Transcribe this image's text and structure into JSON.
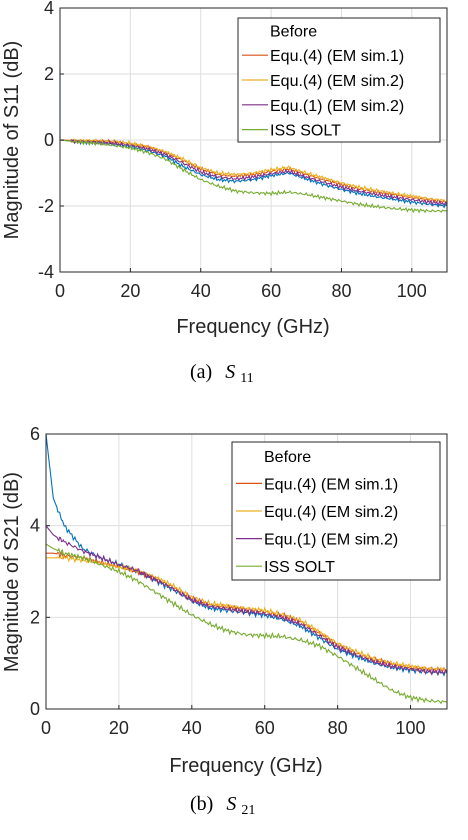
{
  "colors": {
    "axis": "#262626",
    "grid": "#dedede",
    "equ4_em1": "#d95319",
    "equ4_em2": "#edb120",
    "equ1_em2": "#7e2f8e",
    "iss_solt": "#77ac30",
    "before": "#0072bd"
  },
  "chart_data": [
    {
      "type": "line",
      "caption_prefix": "(a)",
      "caption_symbol": "S",
      "caption_sub": "11",
      "xlabel": "Frequency (GHz)",
      "ylabel": "Magnitude of S11 (dB)",
      "xlim": [
        0,
        110
      ],
      "ylim": [
        -4,
        4
      ],
      "xticks": [
        0,
        20,
        40,
        60,
        80,
        100
      ],
      "yticks": [
        -4,
        -2,
        0,
        2,
        4
      ],
      "grid": true,
      "legend_position": "top-right",
      "x": [
        0,
        5,
        10,
        15,
        20,
        25,
        30,
        35,
        40,
        45,
        50,
        55,
        60,
        65,
        70,
        75,
        80,
        85,
        90,
        95,
        100,
        105,
        110
      ],
      "series": [
        {
          "name": "Before",
          "key": "before",
          "spike": 2.2,
          "values": [
            0,
            -0.05,
            -0.08,
            -0.13,
            -0.2,
            -0.32,
            -0.5,
            -0.8,
            -1.05,
            -1.2,
            -1.25,
            -1.2,
            -1.08,
            -1.0,
            -1.18,
            -1.35,
            -1.5,
            -1.62,
            -1.72,
            -1.8,
            -1.88,
            -1.95,
            -2.0
          ]
        },
        {
          "name": "Equ.(4) (EM sim.1)",
          "key": "equ4_em1",
          "spike": 0,
          "values": [
            0,
            -0.02,
            -0.03,
            -0.06,
            -0.12,
            -0.22,
            -0.38,
            -0.62,
            -0.88,
            -1.05,
            -1.1,
            -1.05,
            -0.95,
            -0.88,
            -1.05,
            -1.2,
            -1.35,
            -1.48,
            -1.58,
            -1.66,
            -1.74,
            -1.82,
            -1.88
          ]
        },
        {
          "name": "Equ.(4) (EM sim.2)",
          "key": "equ4_em2",
          "spike": 0,
          "values": [
            0,
            -0.02,
            -0.03,
            -0.05,
            -0.1,
            -0.2,
            -0.35,
            -0.58,
            -0.84,
            -1.0,
            -1.05,
            -1.0,
            -0.9,
            -0.83,
            -1.0,
            -1.15,
            -1.3,
            -1.43,
            -1.53,
            -1.62,
            -1.7,
            -1.78,
            -1.84
          ]
        },
        {
          "name": "Equ.(1) (EM sim.2)",
          "key": "equ1_em2",
          "spike": 0,
          "values": [
            0,
            -0.04,
            -0.06,
            -0.1,
            -0.16,
            -0.27,
            -0.44,
            -0.7,
            -0.97,
            -1.12,
            -1.18,
            -1.12,
            -1.02,
            -0.95,
            -1.12,
            -1.28,
            -1.43,
            -1.55,
            -1.65,
            -1.73,
            -1.81,
            -1.88,
            -1.94
          ]
        },
        {
          "name": "ISS SOLT",
          "key": "iss_solt",
          "spike": 0,
          "values": [
            0,
            -0.06,
            -0.1,
            -0.16,
            -0.24,
            -0.38,
            -0.58,
            -0.9,
            -1.2,
            -1.4,
            -1.55,
            -1.6,
            -1.62,
            -1.58,
            -1.65,
            -1.75,
            -1.85,
            -1.95,
            -2.02,
            -2.08,
            -2.12,
            -2.15,
            -2.15
          ]
        }
      ]
    },
    {
      "type": "line",
      "caption_prefix": "(b)",
      "caption_symbol": "S",
      "caption_sub": "21",
      "xlabel": "Frequency (GHz)",
      "ylabel": "Magnitude of S21 (dB)",
      "xlim": [
        0,
        110
      ],
      "ylim": [
        0,
        6
      ],
      "xticks": [
        0,
        20,
        40,
        60,
        80,
        100
      ],
      "yticks": [
        0,
        2,
        4,
        6
      ],
      "grid": true,
      "legend_position": "top-right",
      "x": [
        0,
        2,
        5,
        10,
        15,
        20,
        25,
        30,
        35,
        40,
        45,
        50,
        55,
        60,
        65,
        70,
        75,
        80,
        85,
        90,
        95,
        100,
        105,
        110
      ],
      "series": [
        {
          "name": "Before",
          "key": "before",
          "spike": 0,
          "values": [
            6.0,
            4.6,
            4.0,
            3.5,
            3.3,
            3.15,
            3.0,
            2.8,
            2.6,
            2.35,
            2.2,
            2.15,
            2.1,
            2.05,
            1.95,
            1.8,
            1.55,
            1.3,
            1.15,
            1.0,
            0.9,
            0.85,
            0.8,
            0.78
          ]
        },
        {
          "name": "Equ.(4) (EM sim.1)",
          "key": "equ4_em1",
          "spike": 0,
          "values": [
            3.4,
            3.4,
            3.35,
            3.3,
            3.2,
            3.1,
            3.0,
            2.85,
            2.65,
            2.4,
            2.27,
            2.22,
            2.17,
            2.12,
            2.03,
            1.9,
            1.65,
            1.4,
            1.22,
            1.07,
            0.97,
            0.9,
            0.86,
            0.85
          ]
        },
        {
          "name": "Equ.(4) (EM sim.2)",
          "key": "equ4_em2",
          "spike": 0,
          "values": [
            3.3,
            3.3,
            3.3,
            3.25,
            3.18,
            3.1,
            3.02,
            2.88,
            2.68,
            2.44,
            2.3,
            2.25,
            2.2,
            2.15,
            2.06,
            1.93,
            1.68,
            1.43,
            1.25,
            1.1,
            1.0,
            0.93,
            0.88,
            0.87
          ]
        },
        {
          "name": "Equ.(1) (EM sim.2)",
          "key": "equ1_em2",
          "spike": 0,
          "values": [
            4.0,
            3.8,
            3.65,
            3.45,
            3.3,
            3.15,
            3.02,
            2.82,
            2.62,
            2.38,
            2.24,
            2.18,
            2.13,
            2.08,
            1.99,
            1.85,
            1.6,
            1.35,
            1.18,
            1.03,
            0.93,
            0.87,
            0.82,
            0.8
          ]
        },
        {
          "name": "ISS SOLT",
          "key": "iss_solt",
          "spike": 0,
          "values": [
            3.6,
            3.5,
            3.4,
            3.3,
            3.15,
            3.0,
            2.8,
            2.55,
            2.3,
            2.05,
            1.85,
            1.7,
            1.62,
            1.6,
            1.58,
            1.5,
            1.38,
            1.15,
            0.9,
            0.65,
            0.4,
            0.25,
            0.18,
            0.15
          ]
        }
      ]
    }
  ]
}
